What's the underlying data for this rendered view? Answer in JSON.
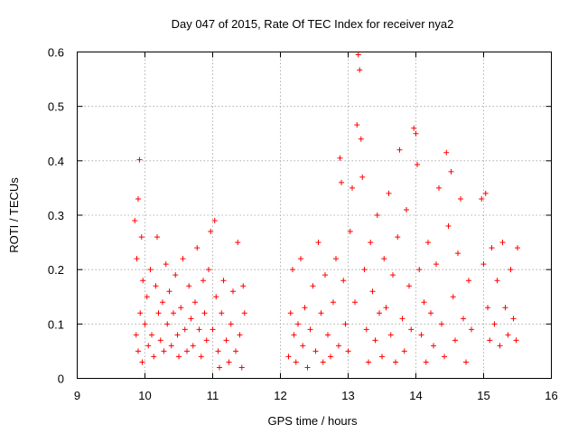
{
  "chart_data": {
    "type": "scatter",
    "title": "Day 047 of 2015, Rate Of TEC Index for receiver nya2",
    "xlabel": "GPS time / hours",
    "ylabel": "ROTI / TECUs",
    "xlim": [
      9,
      16
    ],
    "ylim": [
      0,
      0.6
    ],
    "x_ticks": [
      9,
      10,
      11,
      12,
      13,
      14,
      15,
      16
    ],
    "y_ticks": [
      0,
      0.1,
      0.2,
      0.3,
      0.4,
      0.5,
      0.6
    ],
    "x_tick_labels": [
      "9",
      "10",
      "11",
      "12",
      "13",
      "14",
      "15",
      "16"
    ],
    "y_tick_labels": [
      "0",
      "0.1",
      "0.2",
      "0.3",
      "0.4",
      "0.5",
      "0.6"
    ],
    "grid": true,
    "marker": "plus",
    "color": "#ff0000",
    "series": [
      {
        "values": [
          [
            9.85,
            0.29
          ],
          [
            9.88,
            0.22
          ],
          [
            9.9,
            0.33
          ],
          [
            9.92,
            0.402
          ],
          [
            9.95,
            0.26
          ],
          [
            9.97,
            0.18
          ],
          [
            9.87,
            0.08
          ],
          [
            9.9,
            0.05
          ],
          [
            9.93,
            0.12
          ],
          [
            9.96,
            0.03
          ],
          [
            10.0,
            0.1
          ],
          [
            10.03,
            0.15
          ],
          [
            10.05,
            0.06
          ],
          [
            10.08,
            0.2
          ],
          [
            10.1,
            0.08
          ],
          [
            10.13,
            0.04
          ],
          [
            10.16,
            0.17
          ],
          [
            10.18,
            0.26
          ],
          [
            10.2,
            0.12
          ],
          [
            10.23,
            0.07
          ],
          [
            10.26,
            0.14
          ],
          [
            10.28,
            0.05
          ],
          [
            10.31,
            0.21
          ],
          [
            10.33,
            0.1
          ],
          [
            10.36,
            0.16
          ],
          [
            10.39,
            0.06
          ],
          [
            10.42,
            0.12
          ],
          [
            10.45,
            0.19
          ],
          [
            10.48,
            0.08
          ],
          [
            10.5,
            0.04
          ],
          [
            10.53,
            0.13
          ],
          [
            10.56,
            0.22
          ],
          [
            10.59,
            0.09
          ],
          [
            10.62,
            0.05
          ],
          [
            10.65,
            0.17
          ],
          [
            10.68,
            0.11
          ],
          [
            10.71,
            0.06
          ],
          [
            10.74,
            0.14
          ],
          [
            10.77,
            0.24
          ],
          [
            10.8,
            0.09
          ],
          [
            10.83,
            0.04
          ],
          [
            10.86,
            0.18
          ],
          [
            10.88,
            0.12
          ],
          [
            10.91,
            0.07
          ],
          [
            10.94,
            0.2
          ],
          [
            10.97,
            0.27
          ],
          [
            11.0,
            0.09
          ],
          [
            11.03,
            0.29
          ],
          [
            11.05,
            0.15
          ],
          [
            11.08,
            0.05
          ],
          [
            11.1,
            0.02
          ],
          [
            11.13,
            0.12
          ],
          [
            11.16,
            0.18
          ],
          [
            11.2,
            0.07
          ],
          [
            11.24,
            0.03
          ],
          [
            11.27,
            0.1
          ],
          [
            11.3,
            0.16
          ],
          [
            11.34,
            0.05
          ],
          [
            11.37,
            0.25
          ],
          [
            11.4,
            0.08
          ],
          [
            11.43,
            0.02
          ],
          [
            11.45,
            0.17
          ],
          [
            11.47,
            0.12
          ],
          [
            12.12,
            0.04
          ],
          [
            12.15,
            0.12
          ],
          [
            12.18,
            0.2
          ],
          [
            12.2,
            0.08
          ],
          [
            12.23,
            0.03
          ],
          [
            12.26,
            0.1
          ],
          [
            12.3,
            0.22
          ],
          [
            12.33,
            0.06
          ],
          [
            12.36,
            0.13
          ],
          [
            12.4,
            0.02
          ],
          [
            12.44,
            0.09
          ],
          [
            12.48,
            0.17
          ],
          [
            12.52,
            0.05
          ],
          [
            12.56,
            0.25
          ],
          [
            12.6,
            0.12
          ],
          [
            12.63,
            0.03
          ],
          [
            12.66,
            0.19
          ],
          [
            12.7,
            0.08
          ],
          [
            12.74,
            0.04
          ],
          [
            12.78,
            0.14
          ],
          [
            12.82,
            0.22
          ],
          [
            12.86,
            0.06
          ],
          [
            12.88,
            0.405
          ],
          [
            12.9,
            0.36
          ],
          [
            12.93,
            0.18
          ],
          [
            12.96,
            0.1
          ],
          [
            13.0,
            0.05
          ],
          [
            13.03,
            0.27
          ],
          [
            13.06,
            0.35
          ],
          [
            13.1,
            0.14
          ],
          [
            13.13,
            0.466
          ],
          [
            13.15,
            0.595
          ],
          [
            13.17,
            0.567
          ],
          [
            13.19,
            0.44
          ],
          [
            13.21,
            0.37
          ],
          [
            13.24,
            0.2
          ],
          [
            13.27,
            0.09
          ],
          [
            13.3,
            0.03
          ],
          [
            13.33,
            0.25
          ],
          [
            13.36,
            0.16
          ],
          [
            13.4,
            0.07
          ],
          [
            13.43,
            0.3
          ],
          [
            13.46,
            0.12
          ],
          [
            13.5,
            0.04
          ],
          [
            13.53,
            0.22
          ],
          [
            13.56,
            0.13
          ],
          [
            13.6,
            0.34
          ],
          [
            13.63,
            0.08
          ],
          [
            13.66,
            0.19
          ],
          [
            13.7,
            0.03
          ],
          [
            13.73,
            0.26
          ],
          [
            13.76,
            0.42
          ],
          [
            13.8,
            0.11
          ],
          [
            13.83,
            0.05
          ],
          [
            13.86,
            0.31
          ],
          [
            13.9,
            0.17
          ],
          [
            13.93,
            0.09
          ],
          [
            13.97,
            0.46
          ],
          [
            14.0,
            0.45
          ],
          [
            14.02,
            0.393
          ],
          [
            14.05,
            0.2
          ],
          [
            14.08,
            0.08
          ],
          [
            14.12,
            0.14
          ],
          [
            14.15,
            0.03
          ],
          [
            14.18,
            0.25
          ],
          [
            14.22,
            0.12
          ],
          [
            14.26,
            0.06
          ],
          [
            14.3,
            0.21
          ],
          [
            14.34,
            0.35
          ],
          [
            14.38,
            0.1
          ],
          [
            14.42,
            0.04
          ],
          [
            14.45,
            0.415
          ],
          [
            14.48,
            0.28
          ],
          [
            14.52,
            0.38
          ],
          [
            14.55,
            0.15
          ],
          [
            14.58,
            0.07
          ],
          [
            14.62,
            0.23
          ],
          [
            14.66,
            0.33
          ],
          [
            14.7,
            0.11
          ],
          [
            14.74,
            0.03
          ],
          [
            14.78,
            0.18
          ],
          [
            14.82,
            0.09
          ],
          [
            14.97,
            0.33
          ],
          [
            15.0,
            0.21
          ],
          [
            15.03,
            0.34
          ],
          [
            15.06,
            0.13
          ],
          [
            15.09,
            0.07
          ],
          [
            15.12,
            0.24
          ],
          [
            15.16,
            0.1
          ],
          [
            15.2,
            0.18
          ],
          [
            15.24,
            0.06
          ],
          [
            15.28,
            0.25
          ],
          [
            15.32,
            0.13
          ],
          [
            15.36,
            0.08
          ],
          [
            15.4,
            0.2
          ],
          [
            15.44,
            0.11
          ],
          [
            15.48,
            0.07
          ],
          [
            15.5,
            0.24
          ]
        ]
      }
    ]
  }
}
